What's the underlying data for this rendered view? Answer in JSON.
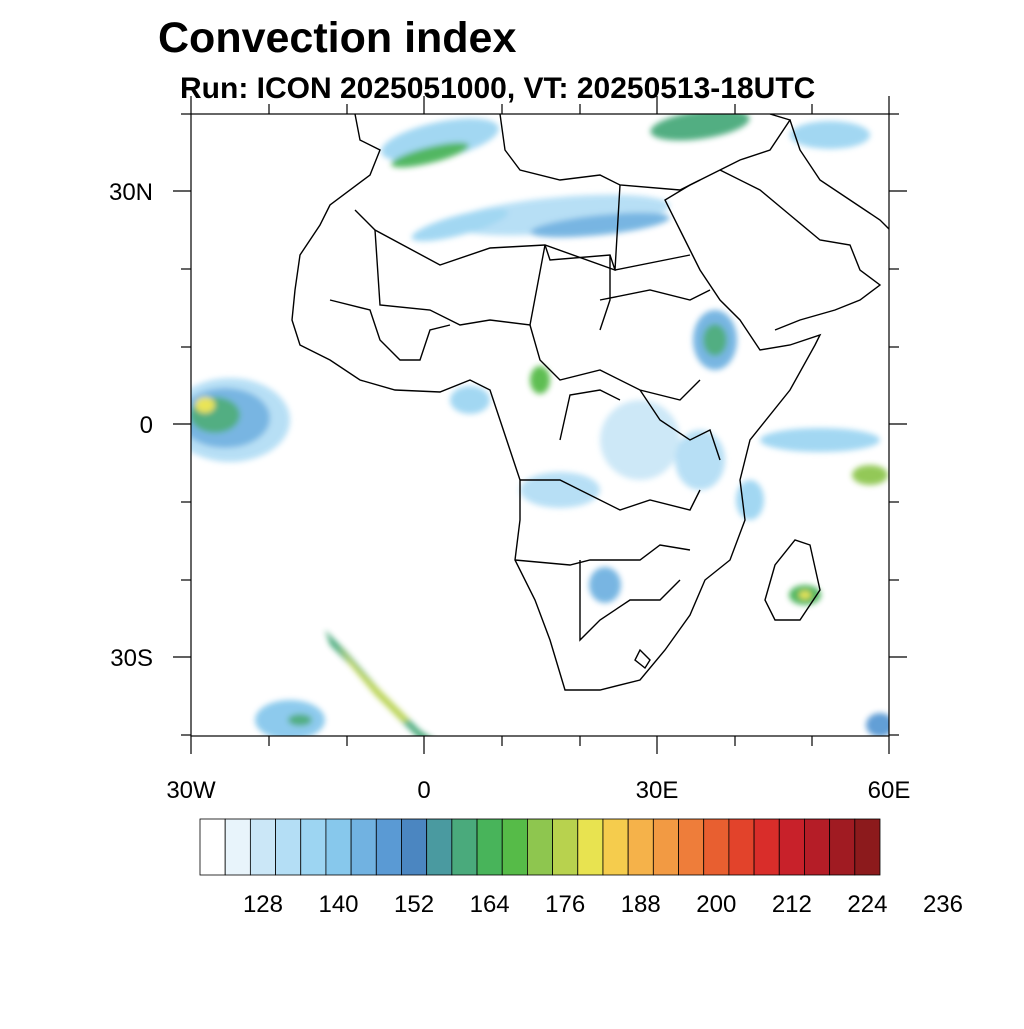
{
  "title": "Convection index",
  "subtitle": "Run: ICON 2025051000,  VT: 20250513-18UTC",
  "axes": {
    "lat_ticks": [
      {
        "label": "30N",
        "value": 30
      },
      {
        "label": "0",
        "value": 0
      },
      {
        "label": "30S",
        "value": -30
      }
    ],
    "lon_ticks": [
      {
        "label": "30W",
        "value": -30
      },
      {
        "label": "0",
        "value": 0
      },
      {
        "label": "30E",
        "value": 30
      },
      {
        "label": "60E",
        "value": 60
      }
    ],
    "lon_range": [
      -30,
      60
    ],
    "lat_range": [
      -40,
      40
    ]
  },
  "colorbar": {
    "colors": [
      "#ffffff",
      "#e8f4fb",
      "#cbe7f7",
      "#b4def5",
      "#9dd5f2",
      "#87c8ec",
      "#71b2e1",
      "#5a9ad4",
      "#4b86c1",
      "#4a9aa0",
      "#4aaa7c",
      "#48b45a",
      "#56bb48",
      "#8ec64f",
      "#b8d24e",
      "#e8e350",
      "#f5cc4d",
      "#f5b24a",
      "#f29a43",
      "#ee7d3a",
      "#e85f30",
      "#e2432b",
      "#d92d2a",
      "#c8212a",
      "#b51d27",
      "#a01b22",
      "#8c1a1c"
    ],
    "labels": [
      "128",
      "140",
      "152",
      "164",
      "176",
      "188",
      "200",
      "212",
      "224",
      "236"
    ]
  }
}
